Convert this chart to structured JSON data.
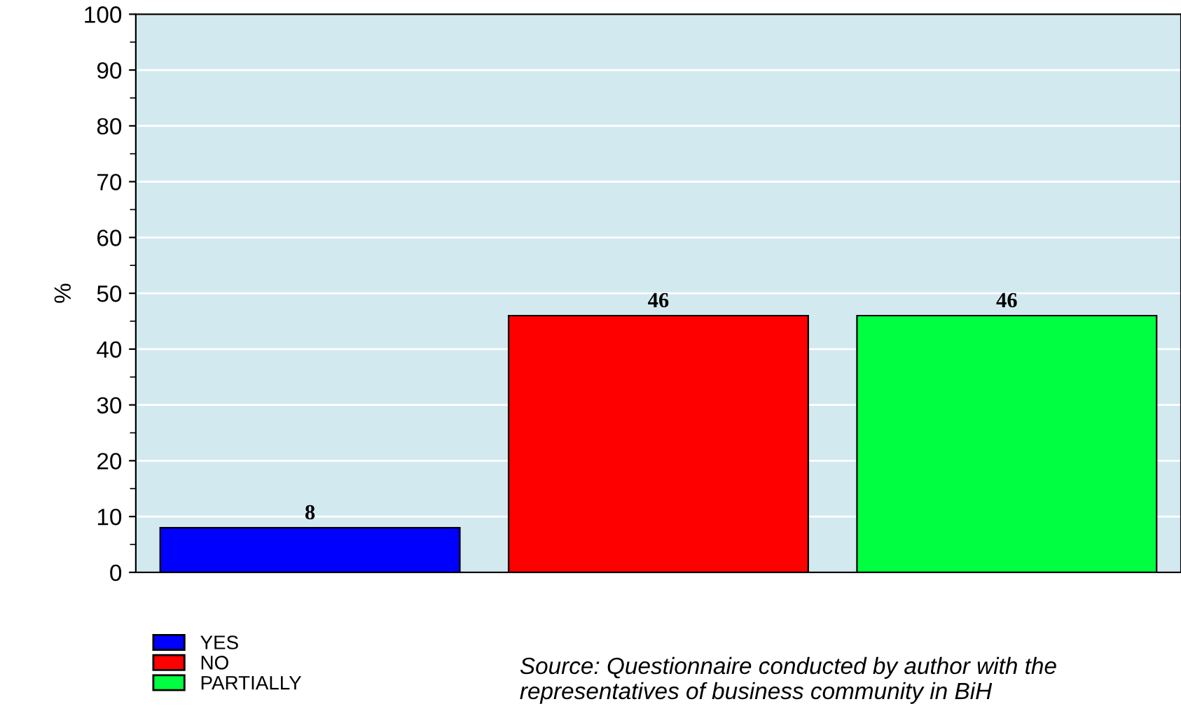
{
  "chart_data": {
    "type": "bar",
    "ylabel": "%",
    "categories": [
      null,
      null,
      null
    ],
    "series": [
      {
        "name": "YES",
        "color": "#0000ff",
        "values": [
          8,
          null,
          null
        ]
      },
      {
        "name": "NO",
        "color": "#ff0000",
        "values": [
          null,
          46,
          null
        ]
      },
      {
        "name": "PARTIALLY",
        "color": "#00ff40",
        "values": [
          null,
          null,
          46
        ]
      }
    ],
    "ylim": [
      0,
      100
    ],
    "yticks": [
      0,
      10,
      20,
      30,
      40,
      50,
      60,
      70,
      80,
      90,
      100
    ],
    "grid": "y",
    "legend": "bottom left",
    "data_labels": true,
    "annotations": [
      "Source: Questionnaire conducted by author with the representatives of business community in BiH"
    ]
  }
}
